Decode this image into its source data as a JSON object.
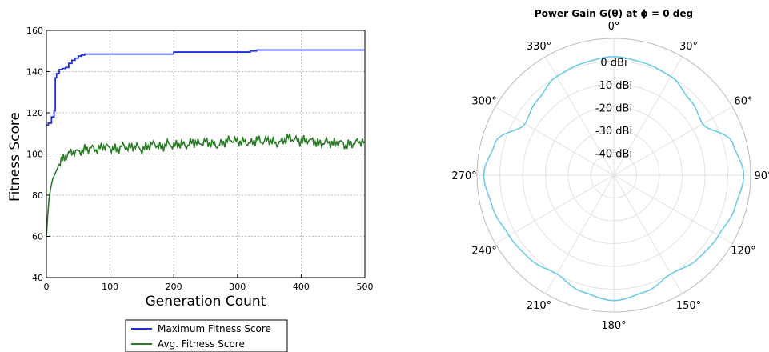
{
  "chart_data": [
    {
      "type": "line",
      "title": "",
      "xlabel": "Generation Count",
      "ylabel": "Fitness Score",
      "xlim": [
        0,
        500
      ],
      "ylim": [
        40,
        160
      ],
      "xticks": [
        "0",
        "100",
        "200",
        "300",
        "400",
        "500"
      ],
      "yticks": [
        "40",
        "60",
        "80",
        "100",
        "120",
        "140",
        "160"
      ],
      "grid": true,
      "legend_position": "below",
      "series": [
        {
          "name": "Maximum Fitness Score",
          "color": "#1f2fe0",
          "x": [
            0,
            3,
            8,
            12,
            14,
            16,
            20,
            25,
            30,
            35,
            40,
            45,
            50,
            55,
            60,
            100,
            195,
            200,
            300,
            320,
            330,
            400,
            500
          ],
          "y": [
            114,
            115,
            118,
            121,
            137,
            139,
            141,
            141.5,
            142,
            144,
            145.5,
            146.5,
            147.5,
            148,
            148.5,
            148.5,
            148.5,
            149.5,
            149.5,
            150,
            150.5,
            150.5,
            150.5
          ]
        },
        {
          "name": "Avg. Fitness Score",
          "color": "#2a7d26",
          "x": [
            0,
            2,
            4,
            7,
            10,
            13,
            16,
            20,
            25,
            30,
            35,
            40,
            50,
            60,
            70,
            80,
            90,
            100,
            110,
            120,
            130,
            140,
            150,
            160,
            170,
            180,
            190,
            200,
            210,
            220,
            230,
            240,
            250,
            260,
            270,
            280,
            290,
            300,
            310,
            320,
            330,
            340,
            350,
            360,
            370,
            380,
            390,
            400,
            410,
            420,
            430,
            440,
            450,
            460,
            470,
            480,
            490,
            500
          ],
          "y": [
            60,
            70,
            78,
            84,
            88,
            90,
            92,
            95,
            97,
            99,
            100,
            101,
            101,
            102,
            103,
            102,
            104,
            103,
            102,
            104,
            103,
            104,
            102,
            104,
            105,
            103,
            105,
            104,
            105,
            104,
            106,
            105,
            106,
            105,
            104,
            106,
            107,
            106,
            106,
            105,
            107,
            106,
            107,
            105,
            106,
            108,
            107,
            106,
            107,
            106,
            105,
            106,
            105,
            106,
            104,
            105,
            106,
            106
          ]
        }
      ]
    },
    {
      "type": "polar",
      "title": "Power Gain G(θ) at ϕ = 0 deg",
      "angle_labels": [
        "0°",
        "30°",
        "60°",
        "90°",
        "120°",
        "150°",
        "180°",
        "210°",
        "240°",
        "270°",
        "300°",
        "330°"
      ],
      "radial_labels": [
        "0 dBi",
        "-10 dBi",
        "-20 dBi",
        "-30 dBi",
        "-40 dBi"
      ],
      "rlim": [
        -50,
        10
      ],
      "series": [
        {
          "color": "#6ecbe8",
          "theta": [
            0,
            15,
            30,
            45,
            60,
            75,
            90,
            105,
            120,
            135,
            150,
            165,
            180,
            195,
            210,
            225,
            240,
            255,
            270,
            285,
            300,
            315,
            330,
            345,
            360
          ],
          "r": [
            2,
            1,
            0,
            -3,
            -5,
            4,
            7,
            5,
            3,
            2,
            0,
            3,
            5,
            3,
            0,
            2,
            3,
            5,
            7,
            4,
            -5,
            -3,
            0,
            1,
            2
          ]
        }
      ]
    }
  ]
}
